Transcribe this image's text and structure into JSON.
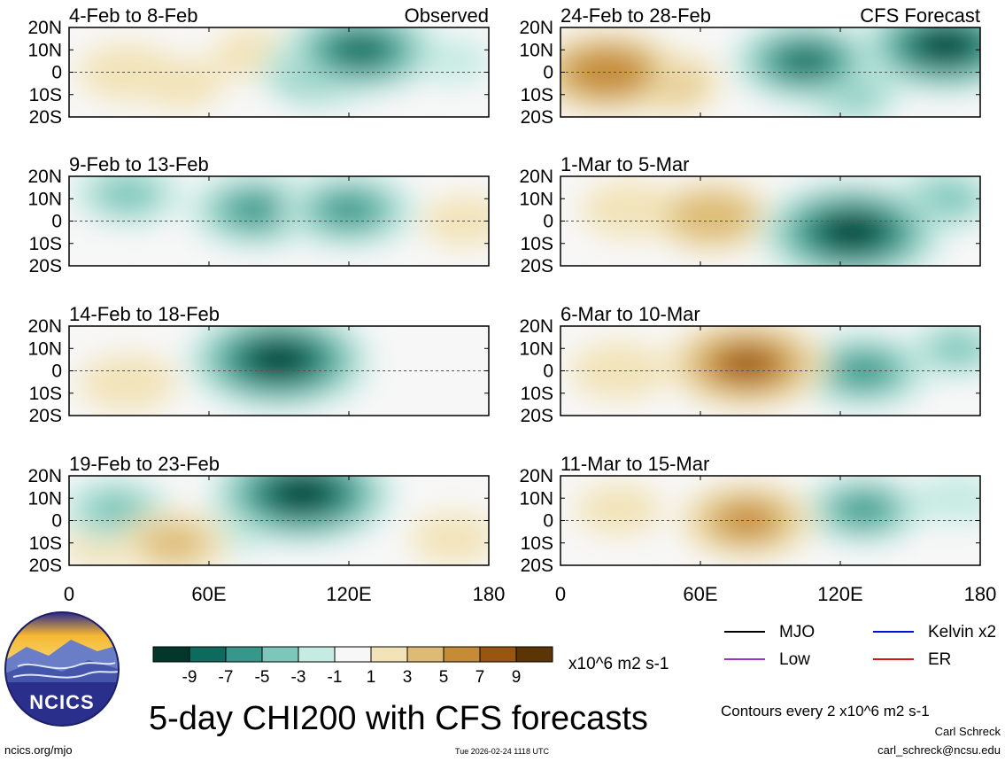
{
  "chart_data": {
    "type": "heatmap",
    "title": "5-day CHI200 with CFS forecasts",
    "variable": "CHI200",
    "units": "x10^6 m2 s-1",
    "contour_note": "Contours every 2 x10^6 m2 s-1",
    "x_axis": {
      "range": [
        0,
        180
      ],
      "ticks": [
        "0",
        "60E",
        "120E",
        "180"
      ]
    },
    "y_axis": {
      "range": [
        -20,
        20
      ],
      "ticks": [
        "20N",
        "10N",
        "0",
        "10S",
        "20S"
      ]
    },
    "colorbar": {
      "ticks": [
        "-9",
        "-7",
        "-5",
        "-3",
        "-1",
        "1",
        "3",
        "5",
        "7",
        "9"
      ],
      "colors": [
        "#04362c",
        "#0e6a5c",
        "#37978a",
        "#7cc6ba",
        "#c6ebe3",
        "#f7f7f7",
        "#f2e3b8",
        "#ddbb74",
        "#c58b36",
        "#995611",
        "#5c3506"
      ]
    },
    "legend": [
      {
        "label": "MJO",
        "color": "#000000"
      },
      {
        "label": "Kelvin x2",
        "color": "#0011dd"
      },
      {
        "label": "Low",
        "color": "#9933cc"
      },
      {
        "label": "ER",
        "color": "#dd1111"
      }
    ],
    "panels": [
      {
        "col": 0,
        "row": 0,
        "period": "4-Feb to 8-Feb",
        "label": "Observed",
        "blobs": [
          {
            "lon": 125,
            "lat": 10,
            "value": -8
          },
          {
            "lon": 108,
            "lat": 0,
            "value": -5
          },
          {
            "lon": 25,
            "lat": 0,
            "value": 3
          },
          {
            "lon": 48,
            "lat": -5,
            "value": 2
          },
          {
            "lon": 80,
            "lat": 8,
            "value": 2
          },
          {
            "lon": 165,
            "lat": 5,
            "value": -1
          }
        ]
      },
      {
        "col": 0,
        "row": 1,
        "period": "9-Feb to 13-Feb",
        "label": "",
        "blobs": [
          {
            "lon": 80,
            "lat": 5,
            "value": -6
          },
          {
            "lon": 120,
            "lat": 5,
            "value": -6
          },
          {
            "lon": 25,
            "lat": 12,
            "value": -4
          },
          {
            "lon": 170,
            "lat": 0,
            "value": 2
          },
          {
            "lon": 5,
            "lat": 0,
            "value": 1
          }
        ]
      },
      {
        "col": 0,
        "row": 2,
        "period": "14-Feb to 18-Feb",
        "label": "",
        "blobs": [
          {
            "lon": 90,
            "lat": 5,
            "value": -10
          },
          {
            "lon": 105,
            "lat": 0,
            "value": -4
          },
          {
            "lon": 25,
            "lat": -5,
            "value": 3
          },
          {
            "lon": 145,
            "lat": 0,
            "value": 1
          },
          {
            "lon": 10,
            "lat": 10,
            "value": 1
          }
        ]
      },
      {
        "col": 0,
        "row": 3,
        "period": "19-Feb to 23-Feb",
        "label": "",
        "blobs": [
          {
            "lon": 100,
            "lat": 12,
            "value": -10
          },
          {
            "lon": 20,
            "lat": 5,
            "value": -4
          },
          {
            "lon": 45,
            "lat": -10,
            "value": 4
          },
          {
            "lon": 15,
            "lat": -10,
            "value": 2
          },
          {
            "lon": 165,
            "lat": -8,
            "value": 2
          },
          {
            "lon": 70,
            "lat": -5,
            "value": -1
          }
        ]
      },
      {
        "col": 1,
        "row": 0,
        "period": "24-Feb to 28-Feb",
        "label": "CFS Forecast",
        "blobs": [
          {
            "lon": 20,
            "lat": 0,
            "value": 7
          },
          {
            "lon": 45,
            "lat": -5,
            "value": 4
          },
          {
            "lon": 105,
            "lat": 5,
            "value": -7
          },
          {
            "lon": 165,
            "lat": 12,
            "value": -9
          },
          {
            "lon": 125,
            "lat": -10,
            "value": -3
          }
        ]
      },
      {
        "col": 1,
        "row": 1,
        "period": "1-Mar to 5-Mar",
        "label": "",
        "blobs": [
          {
            "lon": 30,
            "lat": 5,
            "value": 3
          },
          {
            "lon": 65,
            "lat": 2,
            "value": 5
          },
          {
            "lon": 125,
            "lat": -5,
            "value": -10
          },
          {
            "lon": 165,
            "lat": 10,
            "value": -4
          }
        ]
      },
      {
        "col": 1,
        "row": 2,
        "period": "6-Mar to 10-Mar",
        "label": "",
        "blobs": [
          {
            "lon": 80,
            "lat": 3,
            "value": 8
          },
          {
            "lon": 25,
            "lat": 0,
            "value": 3
          },
          {
            "lon": 130,
            "lat": 0,
            "value": -6
          },
          {
            "lon": 170,
            "lat": 10,
            "value": -3
          }
        ]
      },
      {
        "col": 1,
        "row": 3,
        "period": "11-Mar to 15-Mar",
        "label": "",
        "blobs": [
          {
            "lon": 80,
            "lat": 0,
            "value": 6
          },
          {
            "lon": 25,
            "lat": 5,
            "value": 2
          },
          {
            "lon": 130,
            "lat": 5,
            "value": -5
          },
          {
            "lon": 170,
            "lat": 10,
            "value": -2
          }
        ]
      }
    ]
  },
  "logo": {
    "text": "NCICS"
  },
  "footer": {
    "url": "ncics.org/mjo",
    "timestamp": "Tue 2026-02-24 1118 UTC",
    "author": "Carl Schreck",
    "email": "carl_schreck@ncsu.edu"
  }
}
